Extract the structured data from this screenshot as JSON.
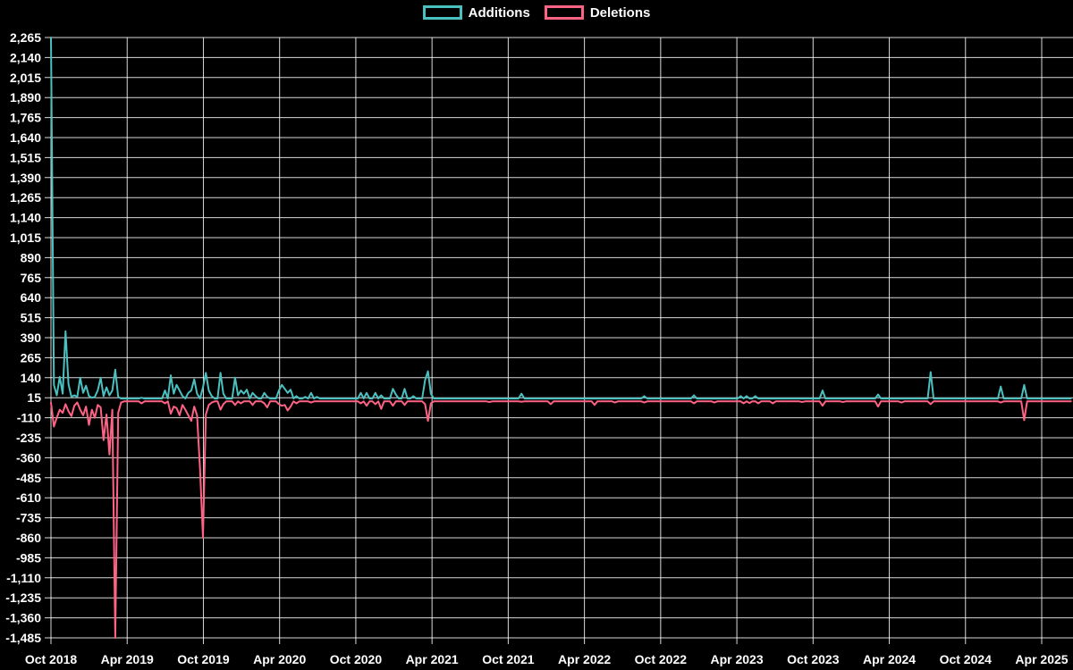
{
  "app": {
    "background_color": "#000000",
    "text_color": "#ffffff"
  },
  "legend": {
    "items": [
      {
        "label": "Additions",
        "color": "#4bc0c0"
      },
      {
        "label": "Deletions",
        "color": "#ff6384"
      }
    ]
  },
  "chart_data": {
    "type": "line",
    "title": "",
    "xlabel": "",
    "ylabel": "",
    "legend_position": "top-center",
    "grid": {
      "shown": true,
      "color": "rgba(255,255,255,0.85)"
    },
    "x_axis": {
      "unit": "weeks",
      "total_weeks": 350,
      "tick_interval": "6 months",
      "tick_labels": [
        "Oct 2018",
        "Apr 2019",
        "Oct 2019",
        "Apr 2020",
        "Oct 2020",
        "Apr 2021",
        "Oct 2021",
        "Apr 2022",
        "Oct 2022",
        "Apr 2023",
        "Oct 2023",
        "Apr 2024",
        "Oct 2024",
        "Apr 2025"
      ]
    },
    "y_axis": {
      "min": -1485,
      "max": 2265,
      "step": 125,
      "tick_labels": [
        "2,265",
        "2,140",
        "2,015",
        "1,890",
        "1,765",
        "1,640",
        "1,515",
        "1,390",
        "1,265",
        "1,140",
        "1,015",
        "890",
        "765",
        "640",
        "515",
        "390",
        "265",
        "140",
        "15",
        "-110",
        "-235",
        "-360",
        "-485",
        "-610",
        "-735",
        "-860",
        "-985",
        "-1,110",
        "-1,235",
        "-1,360",
        "-1,485"
      ]
    },
    "series": [
      {
        "name": "Additions",
        "color": "#4bc0c0",
        "baseline": 10,
        "points": [
          [
            0,
            2265
          ],
          [
            1,
            95
          ],
          [
            2,
            30
          ],
          [
            3,
            145
          ],
          [
            4,
            40
          ],
          [
            5,
            430
          ],
          [
            6,
            100
          ],
          [
            7,
            20
          ],
          [
            8,
            30
          ],
          [
            9,
            20
          ],
          [
            10,
            140
          ],
          [
            11,
            45
          ],
          [
            12,
            90
          ],
          [
            13,
            25
          ],
          [
            14,
            15
          ],
          [
            15,
            20
          ],
          [
            16,
            60
          ],
          [
            17,
            140
          ],
          [
            18,
            25
          ],
          [
            19,
            80
          ],
          [
            20,
            30
          ],
          [
            21,
            60
          ],
          [
            22,
            190
          ],
          [
            23,
            20
          ],
          [
            31,
            15
          ],
          [
            39,
            60
          ],
          [
            41,
            155
          ],
          [
            42,
            40
          ],
          [
            43,
            95
          ],
          [
            44,
            60
          ],
          [
            45,
            25
          ],
          [
            47,
            45
          ],
          [
            48,
            60
          ],
          [
            49,
            130
          ],
          [
            50,
            40
          ],
          [
            52,
            80
          ],
          [
            53,
            170
          ],
          [
            54,
            60
          ],
          [
            55,
            25
          ],
          [
            58,
            170
          ],
          [
            59,
            40
          ],
          [
            63,
            140
          ],
          [
            64,
            30
          ],
          [
            65,
            60
          ],
          [
            66,
            40
          ],
          [
            67,
            65
          ],
          [
            69,
            45
          ],
          [
            70,
            25
          ],
          [
            73,
            45
          ],
          [
            74,
            20
          ],
          [
            78,
            60
          ],
          [
            79,
            95
          ],
          [
            80,
            70
          ],
          [
            81,
            45
          ],
          [
            82,
            65
          ],
          [
            84,
            25
          ],
          [
            87,
            20
          ],
          [
            89,
            45
          ],
          [
            91,
            20
          ],
          [
            106,
            45
          ],
          [
            108,
            45
          ],
          [
            111,
            45
          ],
          [
            113,
            30
          ],
          [
            117,
            70
          ],
          [
            118,
            35
          ],
          [
            121,
            70
          ],
          [
            124,
            25
          ],
          [
            128,
            125
          ],
          [
            129,
            180
          ],
          [
            130,
            40
          ],
          [
            161,
            40
          ],
          [
            203,
            25
          ],
          [
            220,
            30
          ],
          [
            236,
            25
          ],
          [
            238,
            25
          ],
          [
            241,
            25
          ],
          [
            264,
            60
          ],
          [
            283,
            35
          ],
          [
            301,
            175
          ],
          [
            325,
            85
          ],
          [
            333,
            95
          ]
        ]
      },
      {
        "name": "Deletions",
        "color": "#ff6384",
        "baseline": -8,
        "points": [
          [
            0,
            -15
          ],
          [
            1,
            -165
          ],
          [
            2,
            -110
          ],
          [
            3,
            -60
          ],
          [
            4,
            -80
          ],
          [
            5,
            -25
          ],
          [
            6,
            -70
          ],
          [
            7,
            -100
          ],
          [
            8,
            -35
          ],
          [
            9,
            -15
          ],
          [
            10,
            -60
          ],
          [
            11,
            -95
          ],
          [
            12,
            -40
          ],
          [
            13,
            -155
          ],
          [
            14,
            -60
          ],
          [
            15,
            -110
          ],
          [
            16,
            -30
          ],
          [
            17,
            -45
          ],
          [
            18,
            -250
          ],
          [
            19,
            -90
          ],
          [
            20,
            -340
          ],
          [
            21,
            -60
          ],
          [
            22,
            -1485
          ],
          [
            23,
            -80
          ],
          [
            24,
            -15
          ],
          [
            31,
            -20
          ],
          [
            39,
            -20
          ],
          [
            41,
            -85
          ],
          [
            42,
            -40
          ],
          [
            43,
            -50
          ],
          [
            44,
            -95
          ],
          [
            45,
            -30
          ],
          [
            46,
            -60
          ],
          [
            47,
            -95
          ],
          [
            48,
            -130
          ],
          [
            49,
            -40
          ],
          [
            50,
            -95
          ],
          [
            51,
            -430
          ],
          [
            52,
            -860
          ],
          [
            53,
            -90
          ],
          [
            54,
            -30
          ],
          [
            55,
            -15
          ],
          [
            58,
            -60
          ],
          [
            59,
            -25
          ],
          [
            63,
            -30
          ],
          [
            65,
            -20
          ],
          [
            69,
            -30
          ],
          [
            73,
            -20
          ],
          [
            74,
            -45
          ],
          [
            78,
            -25
          ],
          [
            79,
            -35
          ],
          [
            80,
            -30
          ],
          [
            81,
            -65
          ],
          [
            82,
            -40
          ],
          [
            84,
            -20
          ],
          [
            89,
            -15
          ],
          [
            106,
            -20
          ],
          [
            108,
            -35
          ],
          [
            111,
            -25
          ],
          [
            113,
            -55
          ],
          [
            117,
            -35
          ],
          [
            121,
            -30
          ],
          [
            128,
            -25
          ],
          [
            129,
            -130
          ],
          [
            130,
            -20
          ],
          [
            150,
            -12
          ],
          [
            161,
            -10
          ],
          [
            171,
            -25
          ],
          [
            186,
            -30
          ],
          [
            193,
            -15
          ],
          [
            203,
            -15
          ],
          [
            220,
            -20
          ],
          [
            227,
            -15
          ],
          [
            237,
            -20
          ],
          [
            239,
            -18
          ],
          [
            242,
            -20
          ],
          [
            247,
            -20
          ],
          [
            257,
            -12
          ],
          [
            264,
            -35
          ],
          [
            271,
            -12
          ],
          [
            283,
            -40
          ],
          [
            291,
            -15
          ],
          [
            301,
            -25
          ],
          [
            325,
            -15
          ],
          [
            333,
            -125
          ]
        ]
      }
    ]
  }
}
